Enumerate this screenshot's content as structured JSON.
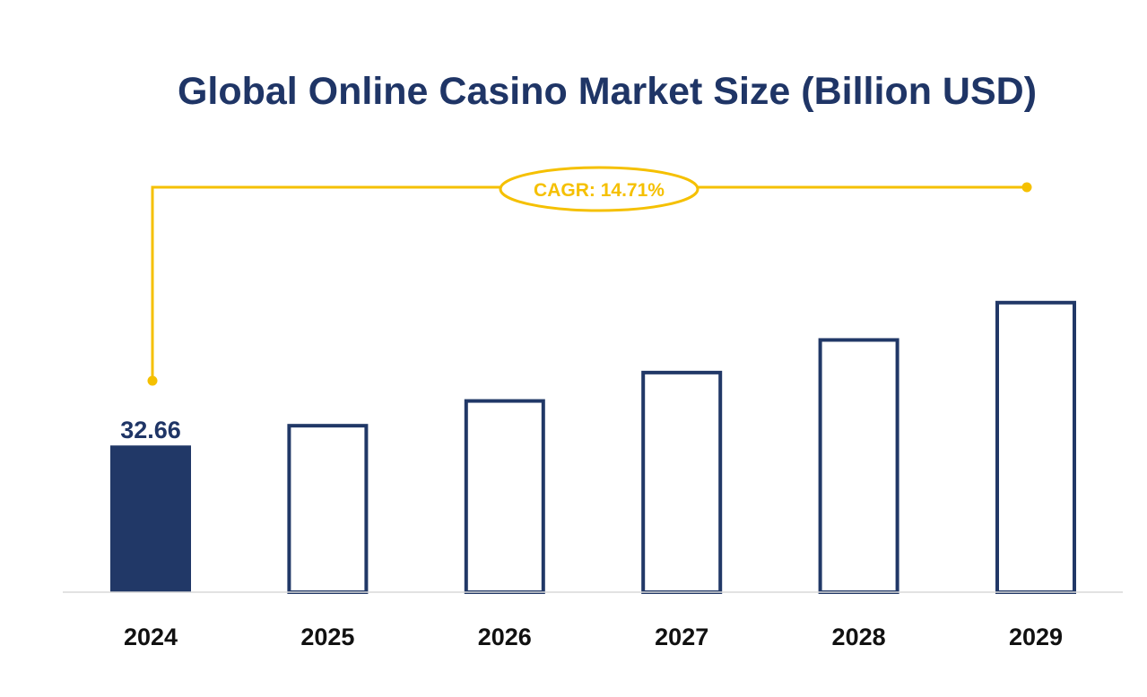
{
  "colors": {
    "title": "#1f3566",
    "bar_fill": "#213867",
    "bar_outline": "#213867",
    "accent": "#f5c000",
    "axis": "#d9d9d9",
    "tick_text": "#111111",
    "data_label": "#1f3566"
  },
  "chart_data": {
    "type": "bar",
    "title": "Global Online Casino Market Size (Billion USD)",
    "xlabel": "",
    "ylabel": "",
    "categories": [
      "2024",
      "2025",
      "2026",
      "2027",
      "2028",
      "2029"
    ],
    "values": [
      32.66,
      37.46,
      42.97,
      49.29,
      56.55,
      64.86
    ],
    "value_labels": [
      "32.66",
      "",
      "",
      "",
      "",
      ""
    ],
    "highlighted": [
      true,
      false,
      false,
      false,
      false,
      false
    ],
    "ylim": [
      0,
      72
    ],
    "grid": false,
    "legend": "none",
    "annotation": {
      "text": "CAGR: 14.71%",
      "from_category": "2024",
      "to_category": "2029"
    }
  }
}
